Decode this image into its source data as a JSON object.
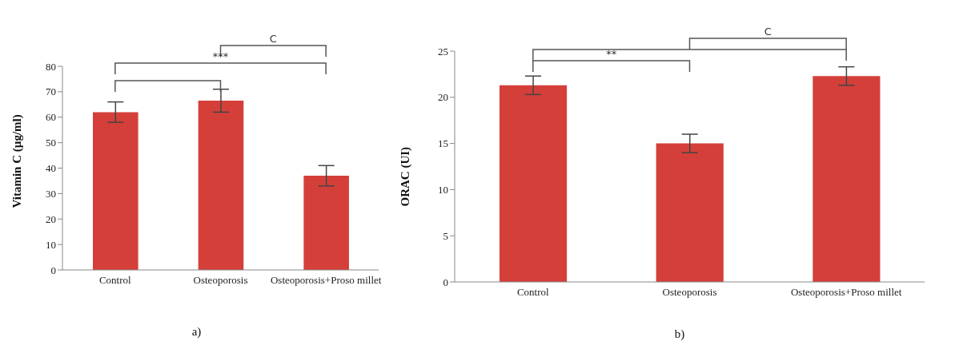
{
  "chart_data": [
    {
      "type": "bar",
      "ylabel": "Vitamin C  (µg/ml)",
      "categories": [
        "Control",
        "Osteoporosis",
        "Osteoporosis+Proso millet"
      ],
      "values": [
        62,
        66.5,
        37
      ],
      "errors": [
        4,
        4.5,
        4
      ],
      "color": "#d43f3a",
      "ylim": [
        0,
        80
      ],
      "yticks": [
        0,
        10,
        20,
        30,
        40,
        50,
        60,
        70,
        80
      ],
      "grid": false,
      "legend": false,
      "annotations": [
        "C",
        "***",
        "a)"
      ]
    },
    {
      "type": "bar",
      "ylabel": "ORAC (UI)",
      "categories": [
        "Control",
        "Osteoporosis",
        "Osteoporosis+Proso millet"
      ],
      "values": [
        21.3,
        15,
        22.3
      ],
      "errors": [
        1,
        1,
        1
      ],
      "color": "#d43f3a",
      "ylim": [
        0,
        25
      ],
      "yticks": [
        0,
        5,
        10,
        15,
        20,
        25
      ],
      "grid": false,
      "legend": false,
      "annotations": [
        "C",
        "**",
        "b)"
      ]
    }
  ]
}
